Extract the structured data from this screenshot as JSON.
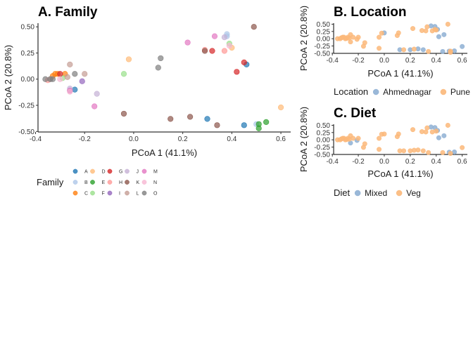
{
  "chart_data": [
    {
      "type": "scatter",
      "title": "A. Family",
      "xlabel": "PCoA 1 (41.1%)",
      "ylabel": "PCoA 2 (20.8%)",
      "xlim": [
        -0.39,
        0.64
      ],
      "ylim": [
        -0.505,
        0.535
      ],
      "xticks": [
        "-0.4",
        "-0.2",
        "0.0",
        "0.2",
        "0.4",
        "0.6"
      ],
      "yticks": [
        "-0.50",
        "-0.25",
        "0.00",
        "0.25",
        "0.50"
      ],
      "legend_title": "Family",
      "legend_position": "bottom",
      "series": [
        {
          "name": "A",
          "color": "#1f77b4",
          "points": [
            [
              -0.24,
              -0.1
            ],
            [
              0.3,
              -0.38
            ],
            [
              0.45,
              -0.44
            ],
            [
              0.46,
              0.14
            ]
          ]
        },
        {
          "name": "B",
          "color": "#aec7e8",
          "points": [
            [
              0.38,
              0.43
            ],
            [
              0.38,
              0.41
            ],
            [
              0.5,
              -0.43
            ]
          ]
        },
        {
          "name": "C",
          "color": "#ff7f0e",
          "points": [
            [
              -0.31,
              0.05
            ],
            [
              -0.32,
              0.05
            ],
            [
              -0.28,
              0.05
            ],
            [
              -0.33,
              0.03
            ]
          ]
        },
        {
          "name": "D",
          "color": "#ffbb78",
          "points": [
            [
              -0.02,
              0.19
            ],
            [
              0.4,
              0.3
            ],
            [
              0.6,
              -0.27
            ]
          ]
        },
        {
          "name": "E",
          "color": "#2ca02c",
          "points": [
            [
              0.51,
              -0.43
            ],
            [
              0.54,
              -0.41
            ],
            [
              0.51,
              -0.47
            ]
          ]
        },
        {
          "name": "F",
          "color": "#98df8a",
          "points": [
            [
              -0.04,
              0.05
            ],
            [
              0.39,
              0.34
            ],
            [
              -0.29,
              0.01
            ]
          ]
        },
        {
          "name": "G",
          "color": "#d62728",
          "points": [
            [
              0.32,
              0.27
            ],
            [
              0.42,
              0.07
            ],
            [
              0.45,
              0.16
            ],
            [
              -0.3,
              0.05
            ]
          ]
        },
        {
          "name": "H",
          "color": "#ff9896",
          "points": [
            [
              0.29,
              0.28
            ],
            [
              0.37,
              0.27
            ],
            [
              -0.35,
              -0.01
            ]
          ]
        },
        {
          "name": "I",
          "color": "#9467bd",
          "points": [
            [
              -0.21,
              -0.02
            ],
            [
              -0.26,
              -0.11
            ]
          ]
        },
        {
          "name": "J",
          "color": "#c5b0d5",
          "points": [
            [
              -0.15,
              -0.14
            ],
            [
              0.37,
              0.4
            ],
            [
              -0.26,
              -0.09
            ]
          ]
        },
        {
          "name": "K",
          "color": "#8c564b",
          "points": [
            [
              -0.04,
              -0.33
            ],
            [
              0.15,
              -0.38
            ],
            [
              0.23,
              -0.36
            ],
            [
              0.29,
              0.27
            ],
            [
              0.34,
              -0.44
            ],
            [
              0.49,
              0.5
            ]
          ]
        },
        {
          "name": "L",
          "color": "#c49c94",
          "points": [
            [
              -0.26,
              0.14
            ],
            [
              -0.2,
              0.05
            ],
            [
              -0.34,
              0.0
            ],
            [
              -0.27,
              0.02
            ]
          ]
        },
        {
          "name": "M",
          "color": "#e377c2",
          "points": [
            [
              0.22,
              0.35
            ],
            [
              0.33,
              0.41
            ],
            [
              -0.16,
              -0.26
            ],
            [
              -0.26,
              -0.11
            ]
          ]
        },
        {
          "name": "N",
          "color": "#f7b6d2",
          "points": [
            [
              -0.3,
              0.0
            ],
            [
              0.39,
              0.32
            ],
            [
              -0.26,
              -0.12
            ]
          ]
        },
        {
          "name": "O",
          "color": "#7f7f7f",
          "points": [
            [
              0.11,
              0.2
            ],
            [
              0.1,
              0.11
            ],
            [
              -0.36,
              0.0
            ],
            [
              -0.33,
              0.0
            ],
            [
              -0.24,
              0.05
            ],
            [
              -0.34,
              0.0
            ]
          ]
        }
      ]
    },
    {
      "type": "scatter",
      "title": "B. Location",
      "xlabel": "PCoA 1 (41.1%)",
      "ylabel": "PCoA 2 (20.8%)",
      "xlim": [
        -0.39,
        0.64
      ],
      "ylim": [
        -0.505,
        0.535
      ],
      "xticks": [
        "-0.4",
        "-0.2",
        "0.0",
        "0.2",
        "0.4",
        "0.6"
      ],
      "yticks": [
        "0.50",
        "0.25",
        "0.00",
        "-0.25",
        "-0.50"
      ],
      "legend_title": "Location",
      "legend_position": "bottom",
      "series": [
        {
          "name": "Ahmednagar",
          "color": "#8fb0d4",
          "points": [
            [
              0.0,
              0.2
            ],
            [
              0.12,
              -0.38
            ],
            [
              0.2,
              -0.38
            ],
            [
              0.26,
              -0.35
            ],
            [
              0.36,
              0.44
            ],
            [
              0.39,
              0.42
            ],
            [
              0.41,
              0.32
            ],
            [
              0.5,
              -0.43
            ],
            [
              0.54,
              -0.42
            ],
            [
              0.6,
              -0.27
            ],
            [
              0.42,
              0.07
            ],
            [
              0.46,
              0.14
            ],
            [
              0.45,
              -0.44
            ],
            [
              0.3,
              -0.38
            ]
          ]
        },
        {
          "name": "Pune",
          "color": "#fbb87a",
          "points": [
            [
              -0.36,
              0.0
            ],
            [
              -0.34,
              0.0
            ],
            [
              -0.33,
              0.03
            ],
            [
              -0.32,
              0.05
            ],
            [
              -0.31,
              0.05
            ],
            [
              -0.3,
              0.0
            ],
            [
              -0.29,
              0.01
            ],
            [
              -0.28,
              0.05
            ],
            [
              -0.27,
              0.02
            ],
            [
              -0.26,
              0.14
            ],
            [
              -0.26,
              -0.11
            ],
            [
              -0.24,
              0.05
            ],
            [
              -0.21,
              -0.02
            ],
            [
              -0.2,
              0.05
            ],
            [
              -0.16,
              -0.26
            ],
            [
              -0.15,
              -0.14
            ],
            [
              -0.04,
              0.05
            ],
            [
              -0.04,
              -0.33
            ],
            [
              -0.02,
              0.19
            ],
            [
              0.1,
              0.11
            ],
            [
              0.11,
              0.2
            ],
            [
              0.15,
              -0.38
            ],
            [
              0.22,
              0.35
            ],
            [
              0.23,
              -0.36
            ],
            [
              0.29,
              0.28
            ],
            [
              0.32,
              0.27
            ],
            [
              0.33,
              0.41
            ],
            [
              0.37,
              0.27
            ],
            [
              0.39,
              0.32
            ],
            [
              0.4,
              0.3
            ],
            [
              0.49,
              0.5
            ],
            [
              0.51,
              -0.43
            ],
            [
              0.34,
              -0.44
            ],
            [
              0.51,
              -0.47
            ]
          ]
        }
      ]
    },
    {
      "type": "scatter",
      "title": "C. Diet",
      "xlabel": "PCoA 1 (41.1%)",
      "ylabel": "PCoA 2 (20.8%)",
      "xlim": [
        -0.39,
        0.64
      ],
      "ylim": [
        -0.505,
        0.535
      ],
      "xticks": [
        "-0.4",
        "-0.2",
        "0.0",
        "0.2",
        "0.4",
        "0.6"
      ],
      "yticks": [
        "0.50",
        "0.25",
        "0.00",
        "-0.25",
        "-0.50"
      ],
      "legend_title": "Diet",
      "legend_position": "bottom",
      "series": [
        {
          "name": "Mixed",
          "color": "#8fb0d4",
          "points": [
            [
              -0.21,
              -0.02
            ],
            [
              -0.26,
              -0.11
            ],
            [
              0.36,
              0.44
            ],
            [
              0.39,
              0.42
            ],
            [
              0.42,
              0.07
            ],
            [
              0.46,
              0.14
            ],
            [
              0.5,
              -0.43
            ],
            [
              0.54,
              -0.42
            ],
            [
              0.41,
              0.32
            ]
          ]
        },
        {
          "name": "Veg",
          "color": "#fbb87a",
          "points": [
            [
              -0.36,
              0.0
            ],
            [
              -0.34,
              0.0
            ],
            [
              -0.33,
              0.03
            ],
            [
              -0.32,
              0.05
            ],
            [
              -0.31,
              0.05
            ],
            [
              -0.3,
              0.0
            ],
            [
              -0.29,
              0.01
            ],
            [
              -0.28,
              0.05
            ],
            [
              -0.27,
              0.02
            ],
            [
              -0.26,
              0.14
            ],
            [
              -0.24,
              0.05
            ],
            [
              -0.2,
              0.05
            ],
            [
              -0.16,
              -0.26
            ],
            [
              -0.15,
              -0.14
            ],
            [
              -0.04,
              0.05
            ],
            [
              -0.04,
              -0.33
            ],
            [
              0.0,
              0.2
            ],
            [
              -0.02,
              0.19
            ],
            [
              0.1,
              0.11
            ],
            [
              0.11,
              0.2
            ],
            [
              0.12,
              -0.38
            ],
            [
              0.15,
              -0.38
            ],
            [
              0.2,
              -0.38
            ],
            [
              0.22,
              0.35
            ],
            [
              0.23,
              -0.36
            ],
            [
              0.26,
              -0.35
            ],
            [
              0.29,
              0.28
            ],
            [
              0.3,
              -0.38
            ],
            [
              0.32,
              0.27
            ],
            [
              0.33,
              0.41
            ],
            [
              0.34,
              -0.44
            ],
            [
              0.37,
              0.27
            ],
            [
              0.4,
              0.3
            ],
            [
              0.45,
              -0.44
            ],
            [
              0.49,
              0.5
            ],
            [
              0.51,
              -0.47
            ],
            [
              0.6,
              -0.27
            ]
          ]
        }
      ]
    }
  ]
}
